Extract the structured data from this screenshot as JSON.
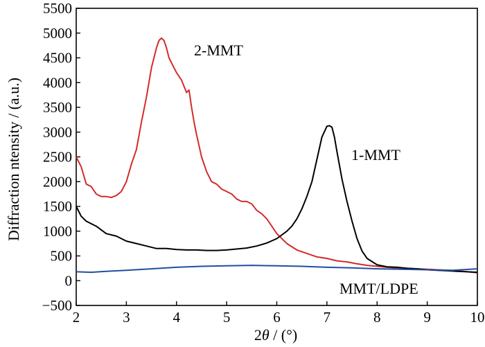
{
  "chart_data": {
    "type": "line",
    "xlabel": "2θ / (°)",
    "xlabel_prefix": "2",
    "xlabel_symbol": "θ",
    "xlabel_suffix": " / (°)",
    "ylabel": "Diffraction ntensity / (a.u.)",
    "xlim": [
      2,
      10
    ],
    "ylim": [
      -500,
      5500
    ],
    "xticks": [
      2,
      3,
      4,
      5,
      6,
      7,
      8,
      9,
      10
    ],
    "yticks": [
      -500,
      0,
      500,
      1000,
      1500,
      2000,
      2500,
      3000,
      3500,
      4000,
      4500,
      5000,
      5500
    ],
    "grid": false,
    "series": [
      {
        "name": "2-MMT",
        "color": "#d42a2a",
        "x": [
          2.0,
          2.1,
          2.2,
          2.3,
          2.4,
          2.5,
          2.6,
          2.7,
          2.8,
          2.9,
          3.0,
          3.1,
          3.2,
          3.3,
          3.4,
          3.5,
          3.6,
          3.65,
          3.7,
          3.75,
          3.8,
          3.85,
          3.9,
          4.0,
          4.1,
          4.2,
          4.25,
          4.3,
          4.35,
          4.4,
          4.5,
          4.6,
          4.7,
          4.8,
          4.9,
          5.0,
          5.1,
          5.2,
          5.3,
          5.4,
          5.5,
          5.6,
          5.7,
          5.8,
          5.9,
          6.0,
          6.2,
          6.4,
          6.6,
          6.8,
          7.0,
          7.2,
          7.4,
          7.6,
          7.8,
          8.0,
          8.2,
          8.4,
          8.6,
          8.8,
          9.0,
          9.2,
          9.4,
          9.6,
          9.8,
          10.0
        ],
        "y": [
          2500,
          2300,
          1950,
          1900,
          1750,
          1700,
          1700,
          1680,
          1720,
          1800,
          2000,
          2350,
          2650,
          3200,
          3700,
          4300,
          4700,
          4850,
          4900,
          4850,
          4700,
          4500,
          4400,
          4200,
          4050,
          3800,
          3850,
          3500,
          3200,
          2950,
          2500,
          2200,
          2000,
          1950,
          1850,
          1800,
          1750,
          1650,
          1600,
          1600,
          1550,
          1420,
          1350,
          1250,
          1100,
          950,
          750,
          620,
          550,
          480,
          450,
          400,
          380,
          340,
          310,
          290,
          270,
          260,
          250,
          240,
          230,
          220,
          210,
          200,
          180,
          160
        ]
      },
      {
        "name": "1-MMT",
        "color": "#000000",
        "x": [
          2.0,
          2.1,
          2.2,
          2.4,
          2.6,
          2.8,
          3.0,
          3.2,
          3.4,
          3.6,
          3.8,
          4.0,
          4.2,
          4.4,
          4.6,
          4.8,
          5.0,
          5.2,
          5.4,
          5.6,
          5.8,
          6.0,
          6.2,
          6.3,
          6.4,
          6.5,
          6.6,
          6.7,
          6.8,
          6.9,
          7.0,
          7.05,
          7.1,
          7.15,
          7.2,
          7.3,
          7.4,
          7.5,
          7.6,
          7.7,
          7.8,
          8.0,
          8.2,
          8.4,
          8.6,
          8.8,
          9.0,
          9.2,
          9.4,
          9.6,
          9.8,
          10.0
        ],
        "y": [
          1500,
          1300,
          1200,
          1100,
          950,
          900,
          800,
          750,
          700,
          650,
          650,
          630,
          620,
          620,
          610,
          610,
          620,
          640,
          660,
          700,
          760,
          850,
          1000,
          1100,
          1250,
          1450,
          1700,
          2000,
          2450,
          2900,
          3120,
          3130,
          3100,
          2900,
          2600,
          2050,
          1600,
          1200,
          850,
          600,
          450,
          320,
          280,
          270,
          250,
          240,
          220,
          210,
          200,
          190,
          180,
          170
        ]
      },
      {
        "name": "MMT/LDPE",
        "color": "#1e4fa0",
        "x": [
          2.0,
          2.3,
          2.6,
          3.0,
          3.5,
          4.0,
          4.5,
          5.0,
          5.5,
          6.0,
          6.5,
          7.0,
          7.5,
          8.0,
          8.5,
          9.0,
          9.5,
          10.0
        ],
        "y": [
          180,
          170,
          190,
          210,
          240,
          270,
          290,
          300,
          310,
          300,
          290,
          270,
          260,
          240,
          230,
          220,
          210,
          240
        ]
      }
    ],
    "annotations": [
      "2-MMT",
      "1-MMT",
      "MMT/LDPE"
    ]
  }
}
